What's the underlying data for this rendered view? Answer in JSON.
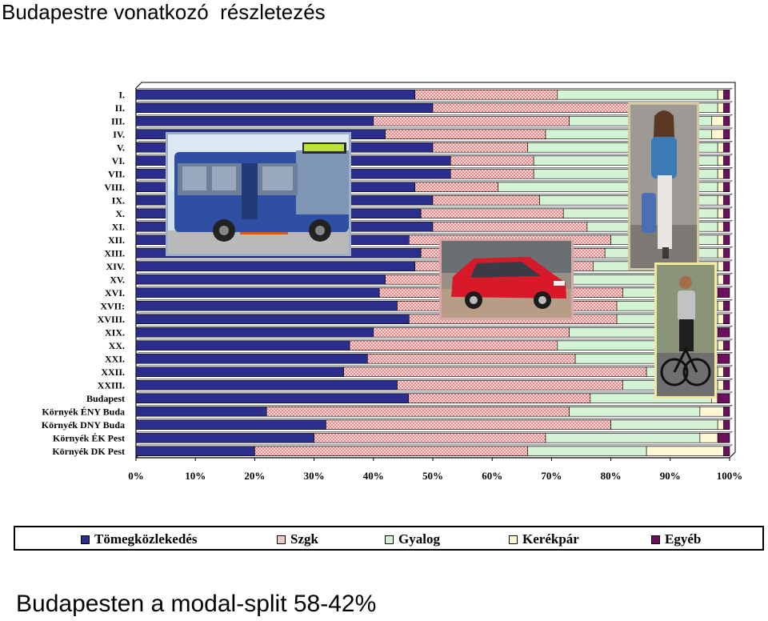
{
  "title": "Budapestre vonatkozó  részletezés",
  "footer": "Budapesten a modal-split 58-42%",
  "chart_data": {
    "type": "bar",
    "orientation": "horizontal",
    "stacked": "percent",
    "categories": [
      "I.",
      "II.",
      "III.",
      "IV.",
      "V.",
      "VI.",
      "VII.",
      "VIII.",
      "IX.",
      "X.",
      "XI.",
      "XII.",
      "XIII.",
      "XIV.",
      "XV.",
      "XVI.",
      "XVII:",
      "XVIII.",
      "XIX.",
      "XX.",
      "XXI.",
      "XXII.",
      "XXIII.",
      "Budapest",
      "Környék ÉNY Buda",
      "Környék DNY Buda",
      "Környék ÉK Pest",
      "Környék DK Pest"
    ],
    "series": [
      {
        "name": "Tömegközlekedés",
        "color": "#2b2e8c",
        "values": [
          47,
          50,
          40,
          42,
          50,
          53,
          53,
          47,
          50,
          48,
          50,
          46,
          48,
          47,
          42,
          41,
          44,
          46,
          40,
          36,
          39,
          35,
          44,
          45,
          22,
          32,
          30,
          20
        ]
      },
      {
        "name": "Szgk",
        "color": "#f0c8c8",
        "values": [
          24,
          33,
          33,
          27,
          16,
          14,
          14,
          14,
          18,
          24,
          26,
          34,
          31,
          30,
          31,
          41,
          37,
          35,
          33,
          35,
          35,
          51,
          38,
          30,
          51,
          48,
          39,
          46
        ]
      },
      {
        "name": "Gyalog",
        "color": "#d4f2d4",
        "values": [
          27,
          15,
          24,
          28,
          32,
          31,
          31,
          37,
          30,
          26,
          22,
          18,
          19,
          21,
          25,
          15,
          17,
          17,
          24,
          27,
          23,
          12,
          16,
          20,
          22,
          18,
          26,
          20
        ]
      },
      {
        "name": "Kerékpár",
        "color": "#fff8d2",
        "values": [
          1,
          1,
          2,
          2,
          1,
          1,
          1,
          1,
          1,
          1,
          1,
          1,
          1,
          1,
          1,
          1,
          1,
          1,
          1,
          1,
          1,
          1,
          1,
          1,
          4,
          1,
          3,
          13
        ]
      },
      {
        "name": "Egyéb",
        "color": "#6b0f5e",
        "values": [
          1,
          1,
          1,
          1,
          1,
          1,
          1,
          1,
          1,
          1,
          1,
          1,
          1,
          1,
          1,
          2,
          1,
          1,
          2,
          1,
          2,
          1,
          1,
          2,
          1,
          1,
          2,
          1
        ]
      }
    ],
    "x_ticks": [
      "0%",
      "10%",
      "20%",
      "30%",
      "40%",
      "50%",
      "60%",
      "70%",
      "80%",
      "90%",
      "100%"
    ],
    "xlim": [
      0,
      100
    ],
    "grid": false,
    "legend_position": "bottom"
  },
  "images": [
    {
      "name": "bus-photo",
      "description_icon": "bus"
    },
    {
      "name": "car-photo",
      "description_icon": "car"
    },
    {
      "name": "pedestrian-photo",
      "description_icon": "walking-person"
    },
    {
      "name": "cyclist-photo",
      "description_icon": "cyclist"
    }
  ]
}
